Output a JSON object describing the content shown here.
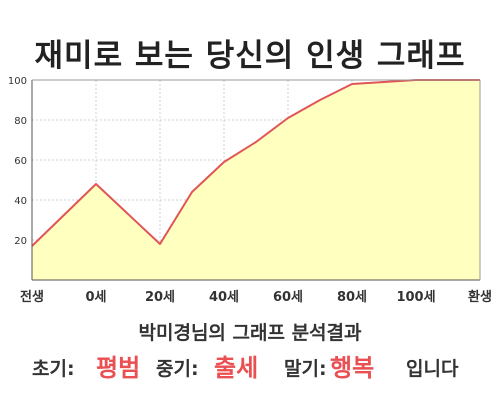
{
  "title": "재미로 보는 당신의 인생 그래프",
  "subtitle": "박미경님의 그래프 분석결과",
  "result": {
    "early_label": "초기:",
    "early_value": "평범",
    "middle_label": "중기:",
    "middle_value": "출세",
    "late_label": "말기:",
    "late_value": "행복",
    "suffix": "입니다"
  },
  "colors": {
    "fill": "#ffffc0",
    "line": "#e05555",
    "accent": "#ea4f52",
    "grid": "#d0d0d0"
  },
  "chart_data": {
    "type": "area",
    "x_tick_labels": [
      "전생",
      "0세",
      "20세",
      "40세",
      "60세",
      "80세",
      "100세",
      "환생"
    ],
    "y_ticks": [
      20,
      40,
      60,
      80,
      100
    ],
    "ylim": [
      0,
      100
    ],
    "xlim": [
      -20,
      120
    ],
    "grid": true,
    "points": [
      {
        "x": -20,
        "y": 17
      },
      {
        "x": 0,
        "y": 48
      },
      {
        "x": 20,
        "y": 18
      },
      {
        "x": 30,
        "y": 44
      },
      {
        "x": 40,
        "y": 59
      },
      {
        "x": 50,
        "y": 69
      },
      {
        "x": 60,
        "y": 81
      },
      {
        "x": 70,
        "y": 90
      },
      {
        "x": 80,
        "y": 98
      },
      {
        "x": 90,
        "y": 99
      },
      {
        "x": 100,
        "y": 100
      },
      {
        "x": 120,
        "y": 100
      }
    ]
  }
}
